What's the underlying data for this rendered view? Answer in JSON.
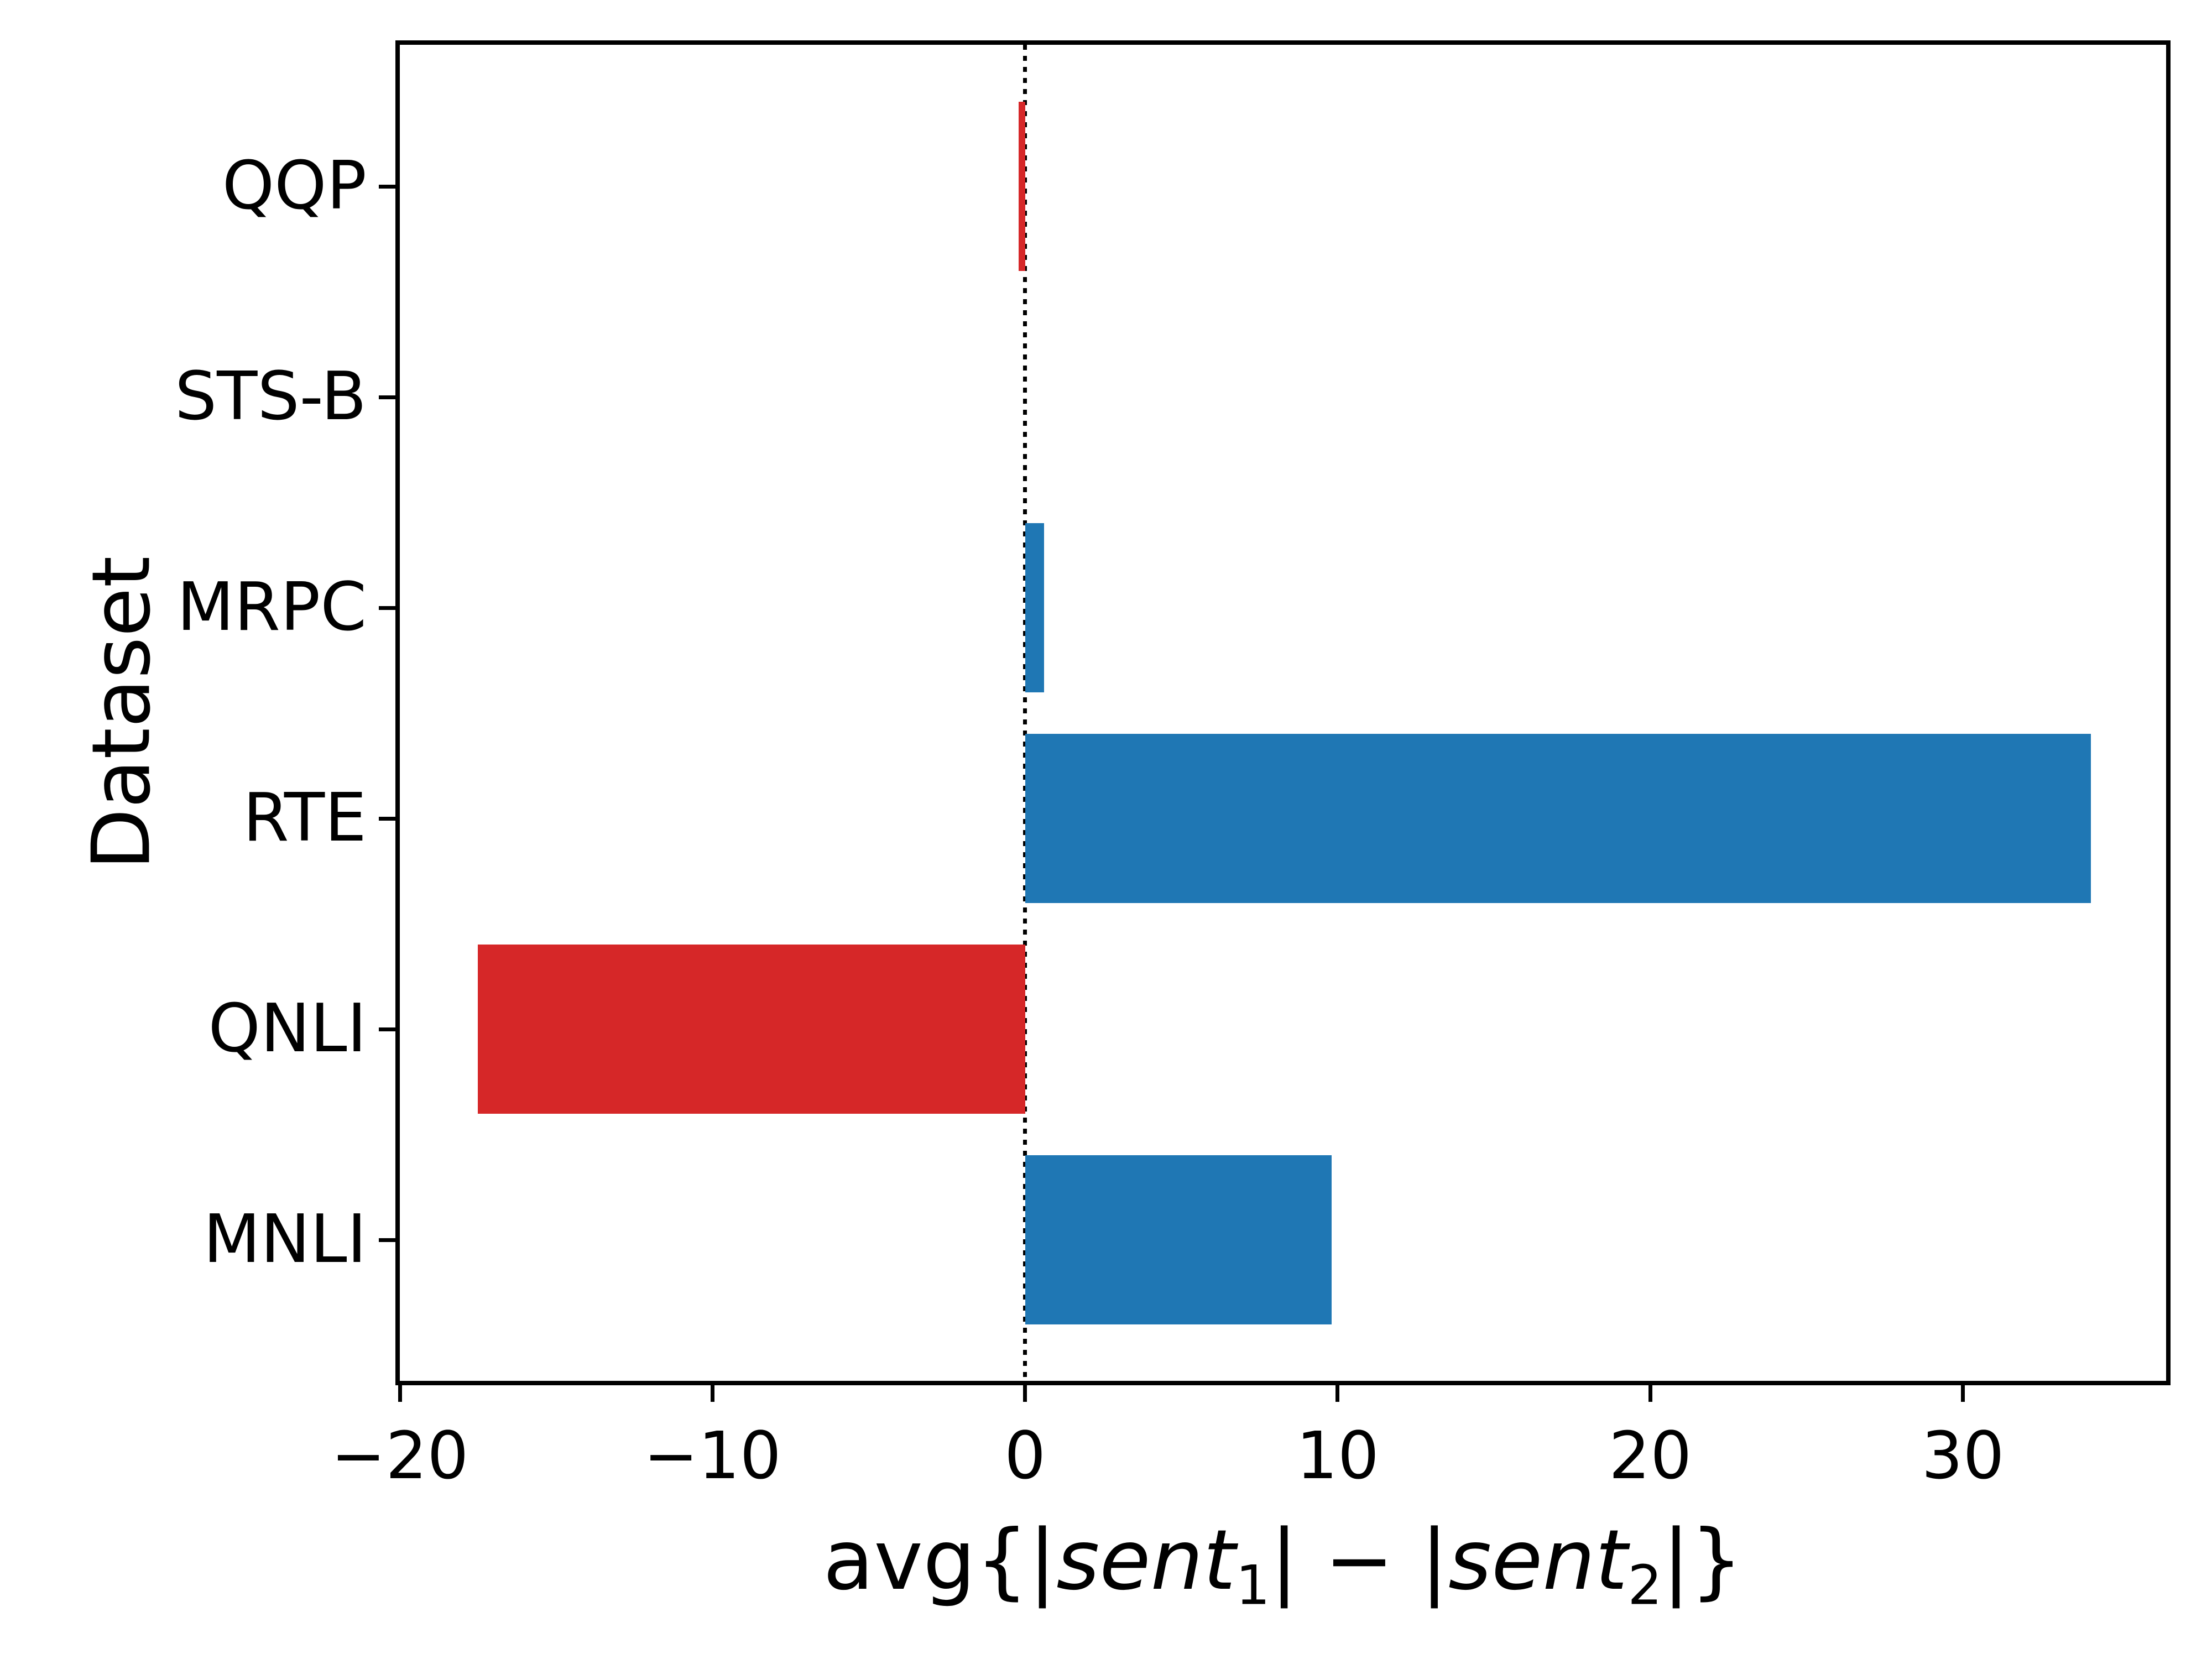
{
  "chart_data": {
    "type": "bar",
    "orientation": "horizontal",
    "title": "",
    "ylabel": "Dataset",
    "xlabel_parts": {
      "prefix": "avg{|",
      "term1": "sent",
      "sub1": "1",
      "middle": "| − |",
      "term2": "sent",
      "sub2": "2",
      "suffix": "|}"
    },
    "categories": [
      "QQP",
      "STS-B",
      "MRPC",
      "RTE",
      "QNLI",
      "MNLI"
    ],
    "values": [
      -0.2,
      0.0,
      0.6,
      34.1,
      -17.5,
      9.8
    ],
    "positive_color": "#1f77b4",
    "negative_color": "#d62728",
    "xlim": [
      -20,
      36.5
    ],
    "xticks": [
      -20,
      -10,
      0,
      10,
      20,
      30
    ],
    "xtick_labels": [
      "−20",
      "−10",
      "0",
      "10",
      "20",
      "30"
    ],
    "zero_line": {
      "x": 0,
      "style": "dotted",
      "color": "#000000"
    },
    "grid": false,
    "legend": null,
    "frame_color": "#000000",
    "background_color": "#ffffff"
  }
}
